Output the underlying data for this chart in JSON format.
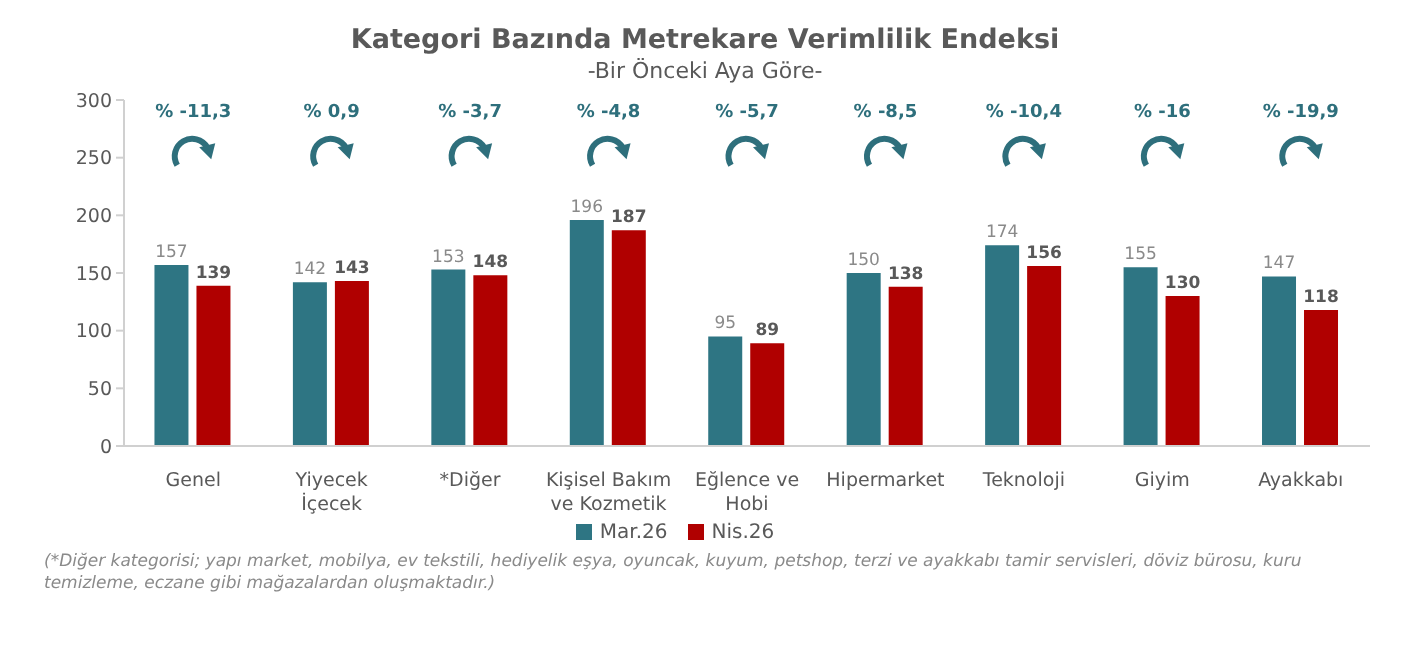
{
  "chart_data": {
    "type": "bar",
    "title": "Kategori Bazında Metrekare Verimlilik Endeksi",
    "subtitle": "-Bir Önceki Aya Göre-",
    "categories": [
      "Genel",
      "Yiyecek İçecek",
      "*Diğer",
      "Kişisel Bakım ve Kozmetik",
      "Eğlence ve Hobi",
      "Hipermarket",
      "Teknoloji",
      "Giyim",
      "Ayakkabı"
    ],
    "series": [
      {
        "name": "Mar.26",
        "color": "#2e7583",
        "values": [
          157,
          142,
          153,
          196,
          95,
          150,
          174,
          155,
          147
        ]
      },
      {
        "name": "Nis.26",
        "color": "#b00000",
        "values": [
          139,
          143,
          148,
          187,
          89,
          138,
          156,
          130,
          118
        ]
      }
    ],
    "ylim": [
      0,
      300
    ],
    "yticks": [
      0,
      50,
      100,
      150,
      200,
      250,
      300
    ],
    "grid": false,
    "legend": "bottom",
    "data_labels": true,
    "annotations": [
      "% -11,3",
      "% 0,9",
      "% -3,7",
      "% -4,8",
      "% -5,7",
      "% -8,5",
      "% -10,4",
      "% -16",
      "% -19,9",
      "(*Diğer kategorisi; yapı market, mobilya, ev tekstili, hediyelik eşya, oyuncak, kuyum, petshop, terzi ve ayakkabı tamir servisleri, döviz bürosu, kuru temizleme, eczane gibi mağazalardan oluşmaktadır.)"
    ]
  }
}
